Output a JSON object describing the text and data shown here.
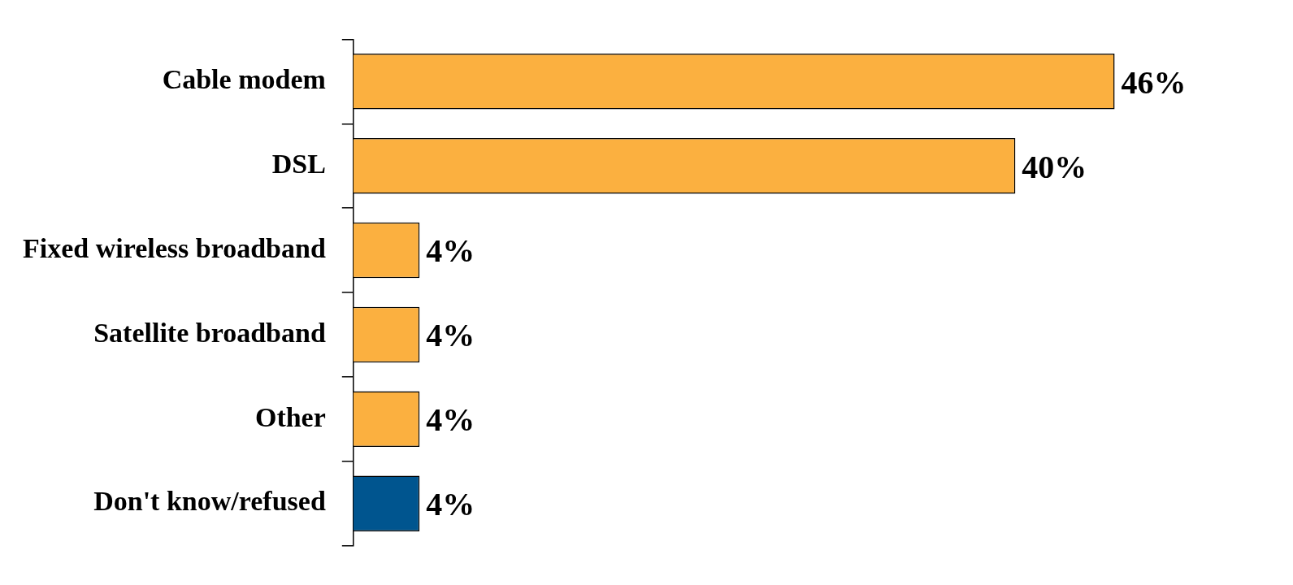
{
  "chart_data": {
    "type": "bar",
    "orientation": "horizontal",
    "categories": [
      "Cable modem",
      "DSL",
      "Fixed wireless broadband",
      "Satellite broadband",
      "Other",
      "Don't know/refused"
    ],
    "values": [
      46,
      40,
      4,
      4,
      4,
      4
    ],
    "colors": [
      "#fbb040",
      "#fbb040",
      "#fbb040",
      "#fbb040",
      "#fbb040",
      "#00558f"
    ],
    "value_labels": [
      "46%",
      "40%",
      "4%",
      "4%",
      "4%",
      "4%"
    ],
    "grid": false,
    "legend": false
  }
}
